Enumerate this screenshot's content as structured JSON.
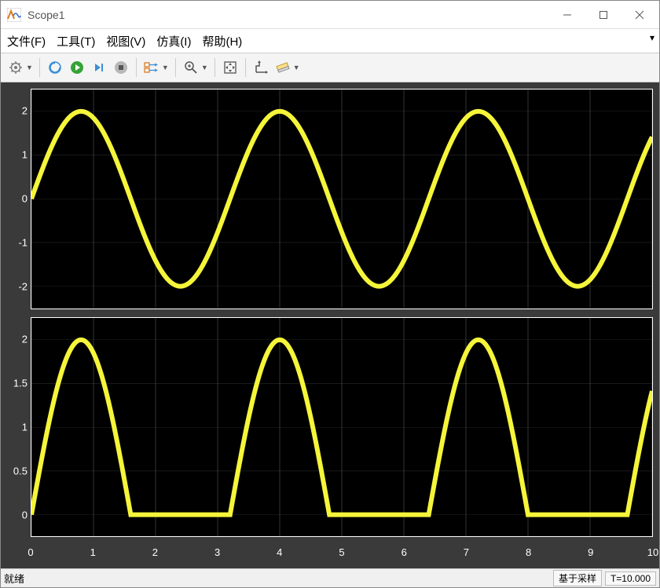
{
  "window": {
    "title": "Scope1",
    "icon_colors": {
      "bg": "#ffffff",
      "accent": "#d97c29",
      "wave": "#2a6fd6"
    }
  },
  "menu": {
    "items": [
      "文件(F)",
      "工具(T)",
      "视图(V)",
      "仿真(I)",
      "帮助(H)"
    ]
  },
  "toolbar": {
    "buttons": [
      {
        "name": "settings-gear-icon",
        "dropdown": true
      },
      {
        "sep": true
      },
      {
        "name": "rewind-icon",
        "dropdown": false
      },
      {
        "name": "play-icon",
        "dropdown": false
      },
      {
        "name": "step-forward-icon",
        "dropdown": false
      },
      {
        "name": "stop-icon",
        "dropdown": false
      },
      {
        "sep": true
      },
      {
        "name": "signal-selector-icon",
        "dropdown": true
      },
      {
        "sep": true
      },
      {
        "name": "zoom-icon",
        "dropdown": true
      },
      {
        "sep": true
      },
      {
        "name": "pan-icon",
        "dropdown": false
      },
      {
        "sep": true
      },
      {
        "name": "scale-axes-icon",
        "dropdown": false
      },
      {
        "name": "ruler-icon",
        "dropdown": true
      }
    ]
  },
  "scope": {
    "background": "#3a3a3a",
    "plot_bg": "#000000",
    "grid_color": "#444444",
    "axis_color": "#ffffff",
    "trace_color": "#f5f53a",
    "trace_width": 1.6,
    "xlim": [
      0,
      10
    ],
    "xtick_step": 1,
    "xticks": [
      "0",
      "1",
      "2",
      "3",
      "4",
      "5",
      "6",
      "7",
      "8",
      "9",
      "10"
    ],
    "axes": [
      {
        "name": "axes-1",
        "ylim": [
          -2.5,
          2.5
        ],
        "yticks": [
          -2,
          -1,
          0,
          1,
          2
        ],
        "ytick_labels": [
          "-2",
          "-1",
          "0",
          "1",
          "2"
        ],
        "signal": {
          "type": "sine",
          "amplitude": 2,
          "period": 3.2,
          "phase": 0
        }
      },
      {
        "name": "axes-2",
        "ylim": [
          -0.25,
          2.25
        ],
        "yticks": [
          0,
          0.5,
          1,
          1.5,
          2
        ],
        "ytick_labels": [
          "0",
          "0.5",
          "1",
          "1.5",
          "2"
        ],
        "signal": {
          "type": "halfwave_sine",
          "amplitude": 2,
          "period": 3.2,
          "phase": 0
        }
      }
    ]
  },
  "status": {
    "left": "就绪",
    "mode": "基于采样",
    "time": "T=10.000"
  },
  "colors": {
    "titlebar_text": "#555555",
    "win_button": "#555555"
  }
}
